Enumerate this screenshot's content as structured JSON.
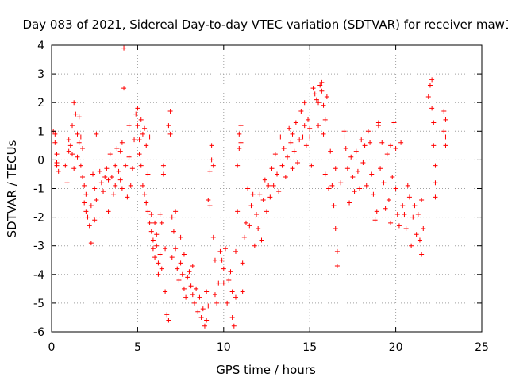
{
  "chart_data": {
    "type": "scatter",
    "title": "Day 083 of 2021, Sidereal Day-to-day VTEC variation (SDTVAR) for receiver maw1",
    "xlabel": "GPS time / hours",
    "ylabel": "SDTVAR / TECUs",
    "xlim": [
      0,
      25
    ],
    "ylim": [
      -6,
      4
    ],
    "xticks": [
      0,
      5,
      10,
      15,
      20,
      25
    ],
    "yticks": [
      -6,
      -5,
      -4,
      -3,
      -2,
      -1,
      0,
      1,
      2,
      3,
      4
    ],
    "grid": true,
    "marker": "+",
    "colors": {
      "series": "#ff0000",
      "grid": "#a0a0a0",
      "axis": "#000000"
    },
    "series": [
      {
        "name": "SDTVAR",
        "points": [
          [
            0.1,
            1.0
          ],
          [
            0.2,
            0.9
          ],
          [
            0.2,
            0.6
          ],
          [
            0.3,
            0.2
          ],
          [
            0.3,
            -0.2
          ],
          [
            0.4,
            -0.4
          ],
          [
            0.3,
            -0.1
          ],
          [
            0.8,
            -0.2
          ],
          [
            0.9,
            -0.8
          ],
          [
            1.0,
            0.3
          ],
          [
            1.0,
            0.7
          ],
          [
            1.1,
            0.5
          ],
          [
            1.2,
            1.2
          ],
          [
            1.2,
            0.2
          ],
          [
            1.3,
            -0.3
          ],
          [
            1.3,
            2.0
          ],
          [
            1.4,
            1.6
          ],
          [
            1.5,
            0.9
          ],
          [
            1.5,
            0.1
          ],
          [
            1.6,
            1.5
          ],
          [
            1.6,
            0.6
          ],
          [
            1.7,
            -0.2
          ],
          [
            1.7,
            0.8
          ],
          [
            1.8,
            0.4
          ],
          [
            1.8,
            -0.6
          ],
          [
            1.9,
            -0.9
          ],
          [
            1.9,
            -1.5
          ],
          [
            2.0,
            -1.8
          ],
          [
            2.0,
            -1.2
          ],
          [
            2.1,
            -2.0
          ],
          [
            2.2,
            -2.3
          ],
          [
            2.3,
            -1.6
          ],
          [
            2.3,
            -2.9
          ],
          [
            2.4,
            -0.5
          ],
          [
            2.5,
            -2.1
          ],
          [
            2.5,
            -1.0
          ],
          [
            2.6,
            0.9
          ],
          [
            2.6,
            -1.4
          ],
          [
            2.8,
            -0.4
          ],
          [
            2.9,
            -0.8
          ],
          [
            3.0,
            -1.1
          ],
          [
            3.1,
            -0.6
          ],
          [
            3.2,
            -0.3
          ],
          [
            3.3,
            -0.7
          ],
          [
            3.3,
            -1.8
          ],
          [
            3.4,
            0.2
          ],
          [
            3.5,
            -0.6
          ],
          [
            3.6,
            -1.2
          ],
          [
            3.7,
            -0.9
          ],
          [
            3.7,
            -0.2
          ],
          [
            3.8,
            0.4
          ],
          [
            3.9,
            -0.4
          ],
          [
            4.0,
            0.3
          ],
          [
            4.0,
            -0.7
          ],
          [
            4.1,
            -1.0
          ],
          [
            4.1,
            0.6
          ],
          [
            4.2,
            2.5
          ],
          [
            4.2,
            3.9
          ],
          [
            4.3,
            -0.2
          ],
          [
            4.4,
            -1.3
          ],
          [
            4.5,
            0.1
          ],
          [
            4.5,
            1.2
          ],
          [
            4.6,
            -0.9
          ],
          [
            4.7,
            -0.3
          ],
          [
            4.8,
            0.7
          ],
          [
            4.9,
            1.6
          ],
          [
            5.0,
            1.8
          ],
          [
            5.0,
            1.2
          ],
          [
            5.1,
            0.7
          ],
          [
            5.1,
            0.2
          ],
          [
            5.2,
            1.4
          ],
          [
            5.2,
            -0.2
          ],
          [
            5.3,
            0.9
          ],
          [
            5.3,
            -0.9
          ],
          [
            5.4,
            1.1
          ],
          [
            5.4,
            -1.2
          ],
          [
            5.5,
            0.5
          ],
          [
            5.5,
            -1.5
          ],
          [
            5.6,
            -0.5
          ],
          [
            5.6,
            -1.8
          ],
          [
            5.7,
            0.8
          ],
          [
            5.7,
            -2.2
          ],
          [
            5.8,
            -2.5
          ],
          [
            5.8,
            -1.9
          ],
          [
            5.9,
            -2.8
          ],
          [
            5.9,
            -3.1
          ],
          [
            6.0,
            -2.2
          ],
          [
            6.0,
            -3.4
          ],
          [
            6.1,
            -3.0
          ],
          [
            6.1,
            -2.6
          ],
          [
            6.2,
            -3.6
          ],
          [
            6.2,
            -4.0
          ],
          [
            6.3,
            -3.3
          ],
          [
            6.3,
            -1.9
          ],
          [
            6.4,
            -2.2
          ],
          [
            6.4,
            -3.8
          ],
          [
            6.5,
            -0.2
          ],
          [
            6.5,
            -0.5
          ],
          [
            6.6,
            -3.1
          ],
          [
            6.6,
            -4.6
          ],
          [
            6.7,
            -5.4
          ],
          [
            6.8,
            -5.6
          ],
          [
            6.8,
            1.2
          ],
          [
            6.9,
            1.7
          ],
          [
            6.9,
            0.9
          ],
          [
            7.0,
            -2.0
          ],
          [
            7.0,
            -3.4
          ],
          [
            7.1,
            -2.5
          ],
          [
            7.2,
            -1.8
          ],
          [
            7.2,
            -3.1
          ],
          [
            7.3,
            -3.8
          ],
          [
            7.4,
            -4.2
          ],
          [
            7.5,
            -3.6
          ],
          [
            7.5,
            -2.7
          ],
          [
            7.6,
            -4.0
          ],
          [
            7.7,
            -4.5
          ],
          [
            7.7,
            -3.3
          ],
          [
            7.8,
            -4.8
          ],
          [
            7.9,
            -4.1
          ],
          [
            8.0,
            -3.9
          ],
          [
            8.1,
            -4.4
          ],
          [
            8.2,
            -4.7
          ],
          [
            8.2,
            -3.7
          ],
          [
            8.3,
            -5.0
          ],
          [
            8.4,
            -4.5
          ],
          [
            8.5,
            -5.3
          ],
          [
            8.6,
            -4.8
          ],
          [
            8.7,
            -5.5
          ],
          [
            8.8,
            -5.2
          ],
          [
            8.9,
            -5.8
          ],
          [
            9.0,
            -5.6
          ],
          [
            9.0,
            -4.6
          ],
          [
            9.1,
            -5.1
          ],
          [
            9.1,
            -1.4
          ],
          [
            9.2,
            -1.6
          ],
          [
            9.2,
            -0.4
          ],
          [
            9.3,
            0.5
          ],
          [
            9.3,
            0.0
          ],
          [
            9.4,
            -2.7
          ],
          [
            9.4,
            -0.2
          ],
          [
            9.5,
            -4.7
          ],
          [
            9.5,
            -3.5
          ],
          [
            9.6,
            -5.0
          ],
          [
            9.7,
            -4.3
          ],
          [
            9.8,
            -3.2
          ],
          [
            9.9,
            -3.5
          ],
          [
            10.0,
            -3.8
          ],
          [
            10.0,
            -4.3
          ],
          [
            10.1,
            -3.1
          ],
          [
            10.2,
            -5.0
          ],
          [
            10.3,
            -4.2
          ],
          [
            10.4,
            -3.9
          ],
          [
            10.5,
            -4.6
          ],
          [
            10.5,
            -5.5
          ],
          [
            10.6,
            -5.8
          ],
          [
            10.7,
            -4.8
          ],
          [
            10.7,
            -3.2
          ],
          [
            10.8,
            -1.8
          ],
          [
            10.8,
            -0.2
          ],
          [
            10.9,
            0.4
          ],
          [
            10.9,
            0.9
          ],
          [
            11.0,
            1.2
          ],
          [
            11.0,
            0.6
          ],
          [
            11.1,
            -4.6
          ],
          [
            11.1,
            -3.6
          ],
          [
            11.2,
            -2.7
          ],
          [
            11.3,
            -2.2
          ],
          [
            11.4,
            -1.0
          ],
          [
            11.5,
            -2.3
          ],
          [
            11.6,
            -1.6
          ],
          [
            11.7,
            -1.2
          ],
          [
            11.8,
            -3.0
          ],
          [
            11.9,
            -1.9
          ],
          [
            12.0,
            -2.4
          ],
          [
            12.1,
            -1.2
          ],
          [
            12.2,
            -2.8
          ],
          [
            12.3,
            -1.4
          ],
          [
            12.4,
            -0.7
          ],
          [
            12.5,
            -1.8
          ],
          [
            12.6,
            -0.9
          ],
          [
            12.7,
            -1.3
          ],
          [
            12.8,
            -0.3
          ],
          [
            12.9,
            -0.9
          ],
          [
            13.0,
            0.2
          ],
          [
            13.1,
            -0.5
          ],
          [
            13.2,
            -1.1
          ],
          [
            13.3,
            0.8
          ],
          [
            13.4,
            -0.2
          ],
          [
            13.5,
            0.4
          ],
          [
            13.6,
            -0.6
          ],
          [
            13.7,
            0.1
          ],
          [
            13.8,
            1.1
          ],
          [
            13.9,
            0.6
          ],
          [
            14.0,
            -0.3
          ],
          [
            14.0,
            0.9
          ],
          [
            14.1,
            0.3
          ],
          [
            14.2,
            1.3
          ],
          [
            14.3,
            -0.1
          ],
          [
            14.4,
            0.7
          ],
          [
            14.5,
            1.7
          ],
          [
            14.6,
            0.8
          ],
          [
            14.7,
            2.0
          ],
          [
            14.7,
            1.2
          ],
          [
            14.8,
            0.5
          ],
          [
            14.9,
            1.4
          ],
          [
            15.0,
            0.8
          ],
          [
            15.0,
            1.1
          ],
          [
            15.1,
            -0.2
          ],
          [
            15.2,
            2.5
          ],
          [
            15.3,
            2.3
          ],
          [
            15.4,
            2.1
          ],
          [
            15.5,
            1.2
          ],
          [
            15.5,
            2.0
          ],
          [
            15.6,
            2.6
          ],
          [
            15.7,
            2.4
          ],
          [
            15.7,
            2.7
          ],
          [
            15.8,
            1.9
          ],
          [
            15.8,
            0.9
          ],
          [
            15.9,
            -0.5
          ],
          [
            15.9,
            1.4
          ],
          [
            16.0,
            2.2
          ],
          [
            16.1,
            -1.0
          ],
          [
            16.2,
            0.3
          ],
          [
            16.3,
            -0.9
          ],
          [
            16.4,
            -1.6
          ],
          [
            16.5,
            -2.4
          ],
          [
            16.5,
            -0.3
          ],
          [
            16.6,
            -3.2
          ],
          [
            16.6,
            -3.7
          ],
          [
            16.8,
            -0.8
          ],
          [
            17.0,
            0.8
          ],
          [
            17.0,
            1.0
          ],
          [
            17.1,
            0.4
          ],
          [
            17.2,
            -0.3
          ],
          [
            17.3,
            -1.5
          ],
          [
            17.4,
            0.1
          ],
          [
            17.5,
            -0.6
          ],
          [
            17.6,
            -1.1
          ],
          [
            17.7,
            0.3
          ],
          [
            17.8,
            -0.4
          ],
          [
            17.9,
            -1.0
          ],
          [
            18.0,
            0.7
          ],
          [
            18.1,
            -0.1
          ],
          [
            18.2,
            0.5
          ],
          [
            18.3,
            -0.9
          ],
          [
            18.4,
            1.0
          ],
          [
            18.5,
            0.6
          ],
          [
            18.6,
            -0.5
          ],
          [
            18.7,
            -1.2
          ],
          [
            18.8,
            -2.1
          ],
          [
            18.9,
            -1.8
          ],
          [
            19.0,
            1.3
          ],
          [
            19.0,
            1.2
          ],
          [
            19.1,
            -0.3
          ],
          [
            19.2,
            0.6
          ],
          [
            19.3,
            -0.8
          ],
          [
            19.4,
            -1.7
          ],
          [
            19.5,
            0.2
          ],
          [
            19.6,
            -1.4
          ],
          [
            19.7,
            0.5
          ],
          [
            19.7,
            -2.2
          ],
          [
            19.8,
            -0.6
          ],
          [
            19.9,
            1.3
          ],
          [
            20.0,
            0.4
          ],
          [
            20.0,
            -1.0
          ],
          [
            20.1,
            -1.9
          ],
          [
            20.2,
            -2.3
          ],
          [
            20.3,
            0.6
          ],
          [
            20.4,
            -1.6
          ],
          [
            20.5,
            -1.9
          ],
          [
            20.6,
            -2.4
          ],
          [
            20.7,
            -0.9
          ],
          [
            20.8,
            -1.3
          ],
          [
            20.9,
            -3.0
          ],
          [
            21.0,
            -2.0
          ],
          [
            21.1,
            -1.6
          ],
          [
            21.2,
            -2.6
          ],
          [
            21.3,
            -1.9
          ],
          [
            21.4,
            -2.8
          ],
          [
            21.5,
            -3.3
          ],
          [
            21.5,
            -1.4
          ],
          [
            21.6,
            -2.4
          ],
          [
            21.9,
            2.2
          ],
          [
            22.0,
            2.6
          ],
          [
            22.1,
            2.8
          ],
          [
            22.1,
            1.8
          ],
          [
            22.2,
            1.3
          ],
          [
            22.2,
            0.5
          ],
          [
            22.3,
            -0.2
          ],
          [
            22.3,
            -0.8
          ],
          [
            22.3,
            -1.3
          ],
          [
            22.8,
            1.7
          ],
          [
            22.8,
            1.0
          ],
          [
            22.9,
            0.5
          ],
          [
            22.9,
            0.8
          ],
          [
            22.9,
            1.4
          ]
        ]
      }
    ]
  }
}
